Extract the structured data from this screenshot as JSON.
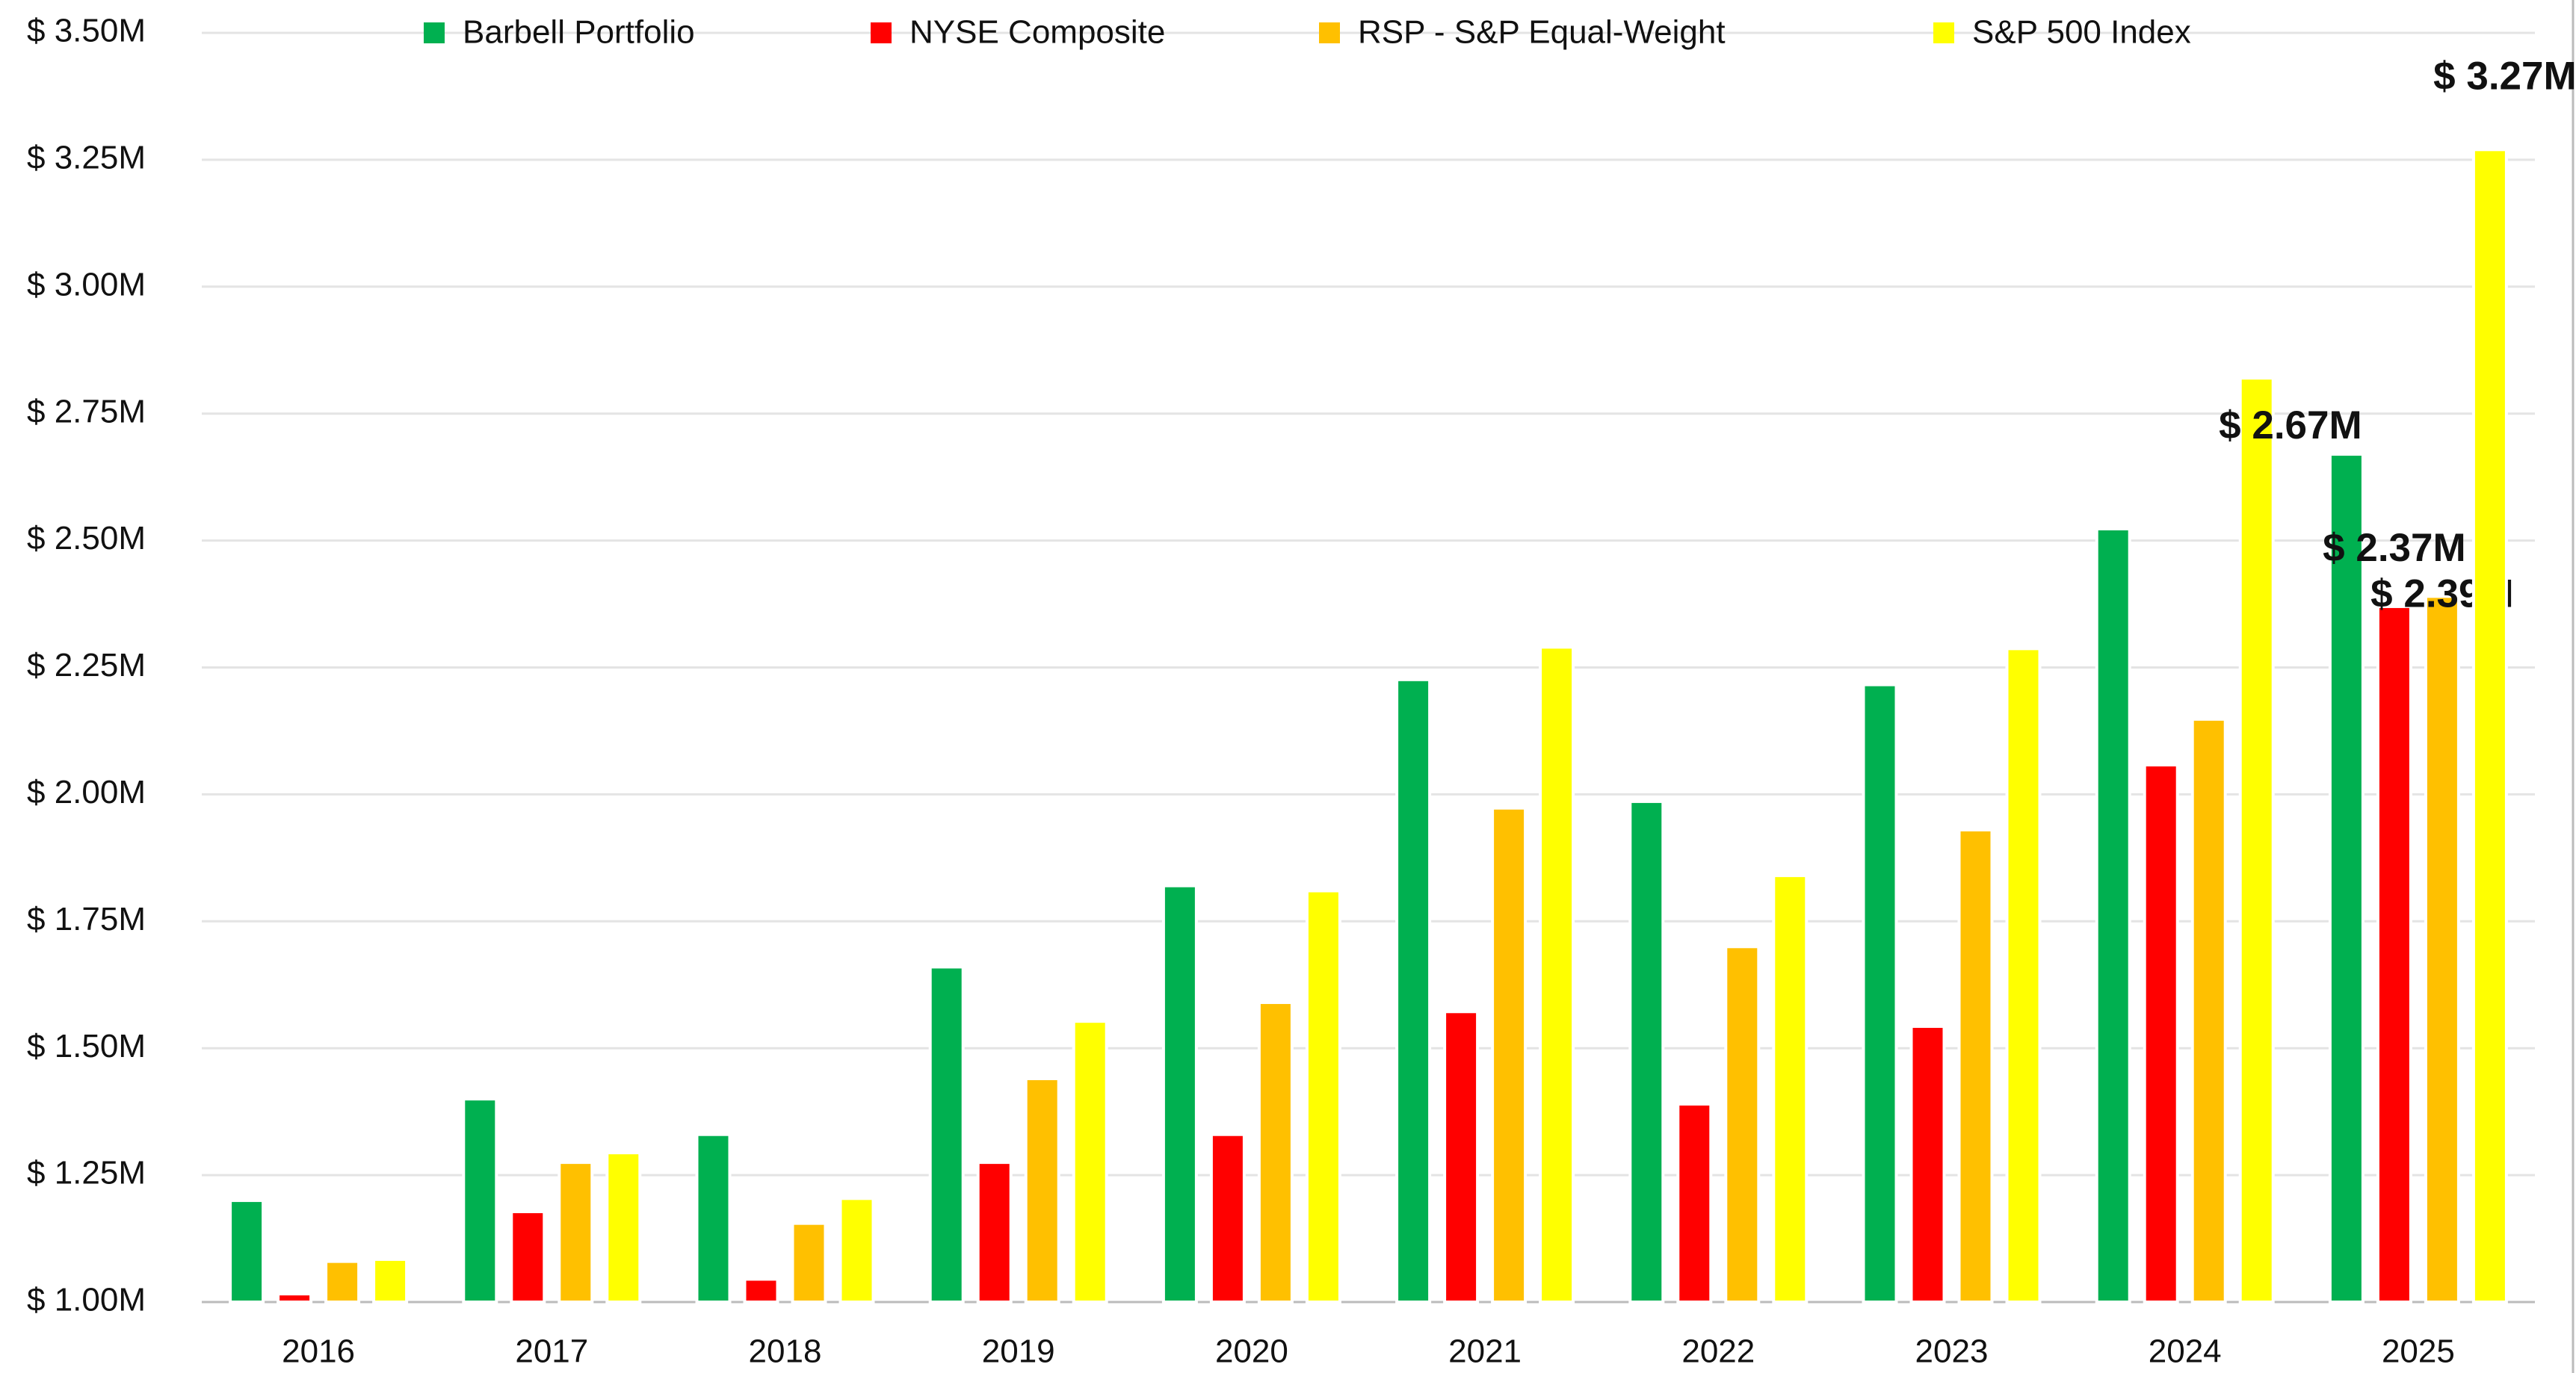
{
  "chart_data": {
    "type": "bar",
    "categories": [
      "2016",
      "2017",
      "2018",
      "2019",
      "2020",
      "2021",
      "2022",
      "2023",
      "2024",
      "2025"
    ],
    "series": [
      {
        "name": "Barbell Portfolio",
        "color": "#00b050",
        "values": [
          1200000,
          1400000,
          1330000,
          1660000,
          1820000,
          2226000,
          1986000,
          2216000,
          2523000,
          2670000
        ],
        "value_labels": [
          null,
          null,
          null,
          null,
          null,
          null,
          null,
          null,
          null,
          "$ 2.67M"
        ]
      },
      {
        "name": "NYSE Composite",
        "color": "#ff0000",
        "values": [
          1016000,
          1178000,
          1045000,
          1275000,
          1330000,
          1572000,
          1390000,
          1543000,
          2058000,
          2370000
        ],
        "value_labels": [
          null,
          null,
          null,
          null,
          null,
          null,
          null,
          null,
          null,
          "$ 2.37M"
        ]
      },
      {
        "name": "RSP - S&P Equal-Weight",
        "color": "#ffc000",
        "values": [
          1080000,
          1275000,
          1155000,
          1440000,
          1590000,
          1973000,
          1700000,
          1930000,
          2148000,
          2390000
        ],
        "value_labels": [
          null,
          null,
          null,
          null,
          null,
          null,
          null,
          null,
          null,
          "$ 2.39M"
        ]
      },
      {
        "name": "S&P 500 Index",
        "color": "#ffff00",
        "values": [
          1084000,
          1294000,
          1204000,
          1553000,
          1810000,
          2290000,
          1840000,
          2287000,
          2820000,
          3270000
        ],
        "value_labels": [
          null,
          null,
          null,
          null,
          null,
          null,
          null,
          null,
          null,
          "$ 3.27M"
        ]
      }
    ],
    "ylim": [
      1000000,
      3500000
    ],
    "yticks": [
      {
        "value": 1000000,
        "label": "$ 1.00M"
      },
      {
        "value": 1250000,
        "label": "$ 1.25M"
      },
      {
        "value": 1500000,
        "label": "$ 1.50M"
      },
      {
        "value": 1750000,
        "label": "$ 1.75M"
      },
      {
        "value": 2000000,
        "label": "$ 2.00M"
      },
      {
        "value": 2250000,
        "label": "$ 2.25M"
      },
      {
        "value": 2500000,
        "label": "$ 2.50M"
      },
      {
        "value": 2750000,
        "label": "$ 2.75M"
      },
      {
        "value": 3000000,
        "label": "$ 3.00M"
      },
      {
        "value": 3250000,
        "label": "$ 3.25M"
      },
      {
        "value": 3500000,
        "label": "$ 3.50M"
      }
    ],
    "grid": true,
    "legend": "top"
  }
}
